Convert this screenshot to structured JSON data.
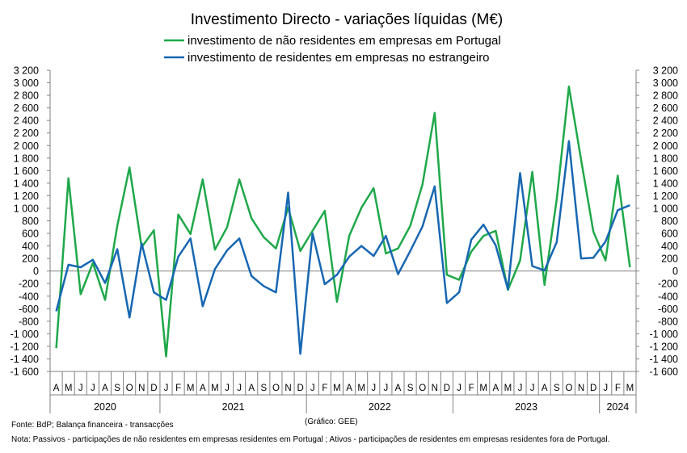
{
  "chart_data": {
    "type": "line",
    "title": "Investimento Directo - variações líquidas (M€)",
    "x": [
      "A",
      "M",
      "J",
      "J",
      "A",
      "S",
      "O",
      "N",
      "D",
      "J",
      "F",
      "M",
      "A",
      "M",
      "J",
      "J",
      "A",
      "S",
      "O",
      "N",
      "D",
      "J",
      "F",
      "M",
      "A",
      "M",
      "J",
      "J",
      "A",
      "S",
      "O",
      "N",
      "D",
      "J",
      "F",
      "M",
      "A",
      "M",
      "J",
      "J",
      "A",
      "S",
      "O",
      "N",
      "D",
      "J",
      "F",
      "M"
    ],
    "years": [
      {
        "label": "2020",
        "start": 0,
        "count": 9
      },
      {
        "label": "2021",
        "start": 9,
        "count": 12
      },
      {
        "label": "2022",
        "start": 21,
        "count": 12
      },
      {
        "label": "2023",
        "start": 33,
        "count": 12
      },
      {
        "label": "2024",
        "start": 45,
        "count": 3
      }
    ],
    "series": [
      {
        "name": "investimento de não residentes em empresas em Portugal",
        "color": "#1fa84a",
        "values": [
          -1230,
          1480,
          -370,
          130,
          -460,
          720,
          1650,
          380,
          650,
          -1360,
          900,
          590,
          1460,
          340,
          700,
          1460,
          840,
          540,
          360,
          1010,
          320,
          640,
          960,
          -490,
          560,
          1010,
          1320,
          280,
          360,
          720,
          1380,
          2520,
          -60,
          -140,
          310,
          560,
          640,
          -300,
          170,
          1580,
          -220,
          1140,
          2940,
          1770,
          630,
          170,
          1520,
          60
        ]
      },
      {
        "name": "investimento de residentes em empresas no estrangeiro",
        "color": "#1767b2",
        "values": [
          -640,
          100,
          60,
          180,
          -190,
          350,
          -740,
          440,
          -340,
          -460,
          230,
          520,
          -560,
          30,
          330,
          520,
          -80,
          -240,
          -340,
          1250,
          -1320,
          600,
          -210,
          -60,
          230,
          400,
          240,
          560,
          -50,
          320,
          710,
          1350,
          -510,
          -340,
          500,
          740,
          410,
          -290,
          1560,
          80,
          10,
          460,
          2070,
          200,
          210,
          470,
          970,
          1050
        ]
      }
    ],
    "ylim": [
      -1600,
      3200
    ],
    "yticks": [
      -1600,
      -1400,
      -1200,
      -1000,
      -800,
      -600,
      -400,
      -200,
      0,
      200,
      400,
      600,
      800,
      1000,
      1200,
      1400,
      1600,
      1800,
      2000,
      2200,
      2400,
      2600,
      2800,
      3000,
      3200
    ],
    "grid": false,
    "legend": "top-center",
    "source": "Fonte: BdP; Balança financeira - transacções",
    "credit": "(Gráfico: GEE)",
    "note": "Nota: Passivos - participações de não residentes em empresas residentes em Portugal ; Ativos - participações de residentes em empresas residentes fora de Portugal."
  }
}
